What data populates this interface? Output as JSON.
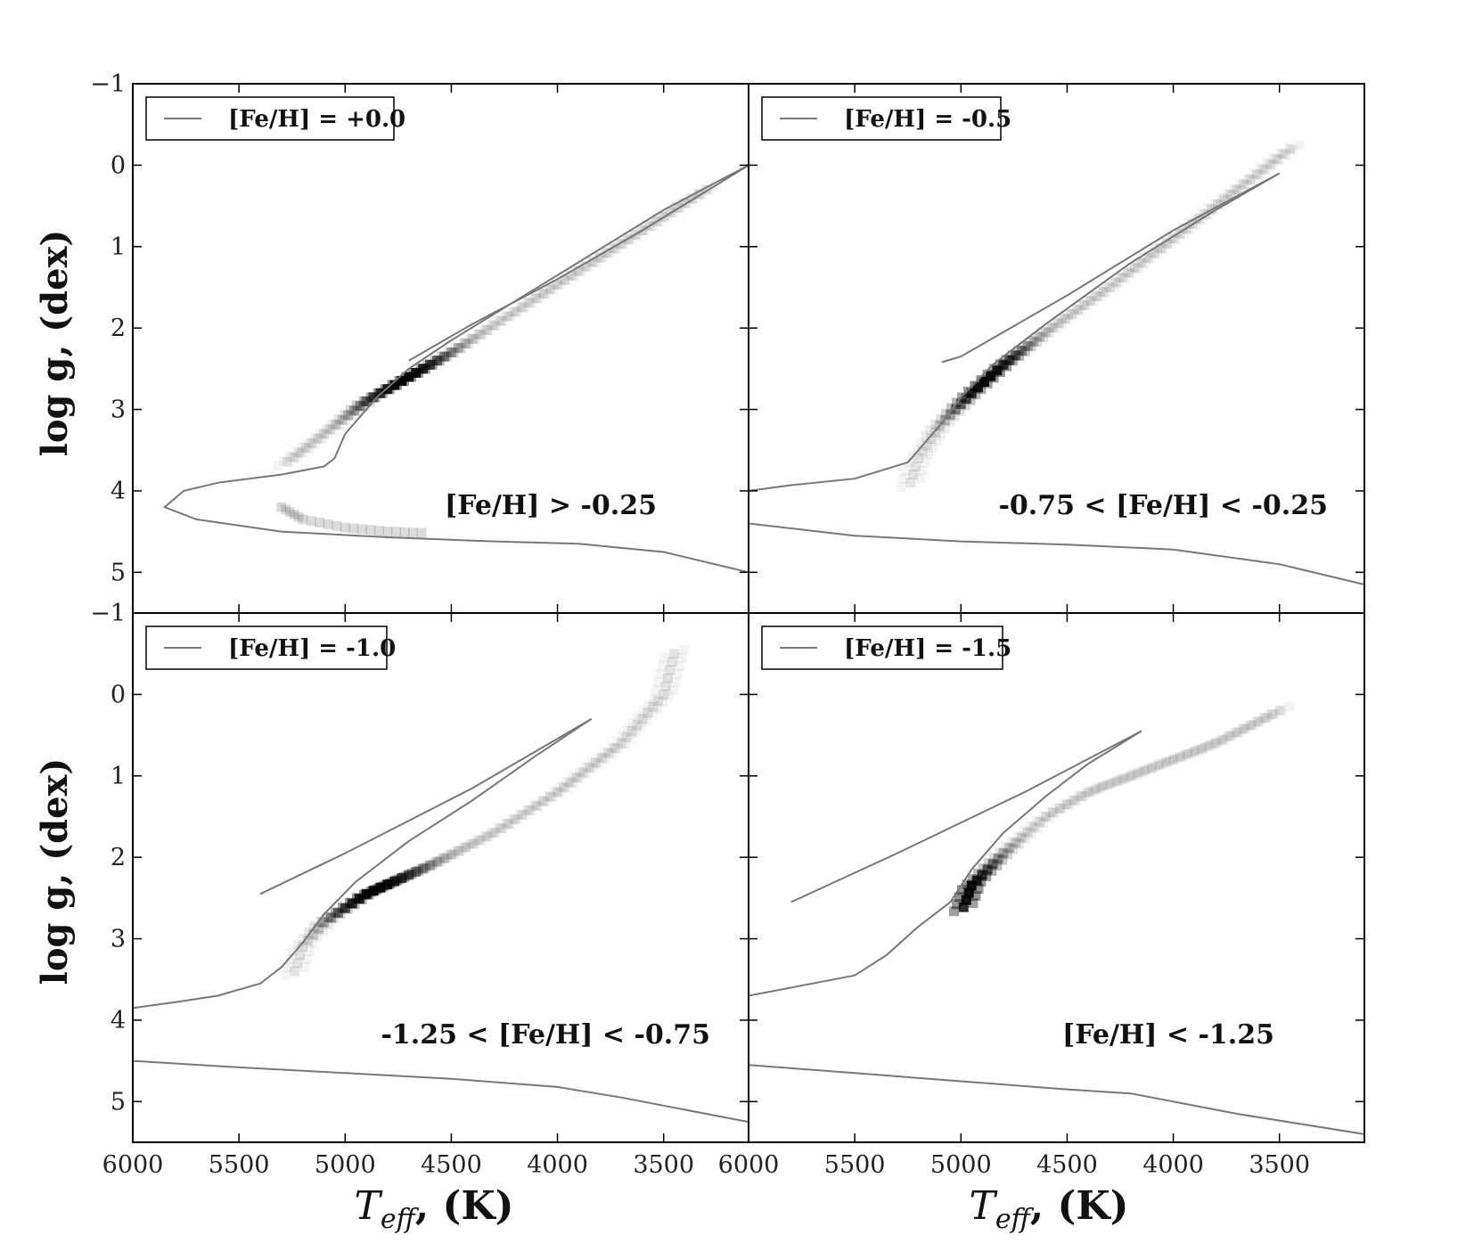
{
  "chart_data": {
    "type": "heatmap",
    "xlabel": {
      "main": "T",
      "sub": "eff",
      "unit": ", (K)"
    },
    "ylabel": "log g, (dex)",
    "xlim": [
      6000,
      3100
    ],
    "ylim": [
      5.5,
      -1
    ],
    "xticks": [
      6000,
      5500,
      5000,
      4500,
      4000,
      3500
    ],
    "xticklabels": [
      "6000",
      "5500",
      "5000",
      "4500",
      "4000",
      "3500"
    ],
    "yticks": [
      -1,
      0,
      1,
      2,
      3,
      4,
      5
    ],
    "yticklabels": [
      "−1",
      "0",
      "1",
      "2",
      "3",
      "4",
      "5"
    ],
    "line_color": "#777777",
    "panels": [
      {
        "legend": "[Fe/H] = +0.0",
        "annotation": "[Fe/H] > -0.25",
        "isochrone_rgb": [
          [
            3100,
            0.0
          ],
          [
            3500,
            0.55
          ],
          [
            4000,
            1.35
          ],
          [
            4500,
            2.15
          ],
          [
            4700,
            2.5
          ],
          [
            4850,
            2.85
          ],
          [
            5000,
            3.3
          ],
          [
            5050,
            3.6
          ],
          [
            5100,
            3.7
          ],
          [
            5300,
            3.8
          ],
          [
            5600,
            3.9
          ],
          [
            5760,
            4.0
          ],
          [
            5850,
            4.2
          ],
          [
            5700,
            4.35
          ],
          [
            5300,
            4.5
          ],
          [
            4800,
            4.57
          ],
          [
            4300,
            4.62
          ],
          [
            3900,
            4.65
          ],
          [
            3500,
            4.75
          ],
          [
            3100,
            5.0
          ]
        ],
        "isochrone_hb": [
          [
            3100,
            0.0
          ],
          [
            3600,
            0.8
          ],
          [
            4000,
            1.4
          ],
          [
            4400,
            1.95
          ],
          [
            4700,
            2.4
          ]
        ],
        "density_ridge": [
          [
            3300,
            0.3
          ],
          [
            3600,
            0.8
          ],
          [
            3900,
            1.3
          ],
          [
            4200,
            1.8
          ],
          [
            4500,
            2.3
          ],
          [
            4700,
            2.6
          ],
          [
            4900,
            2.9
          ],
          [
            5100,
            3.3
          ],
          [
            5300,
            3.7
          ]
        ],
        "density_peak": [
          4750,
          2.6
        ],
        "density_branch": [
          [
            5300,
            4.2
          ],
          [
            5200,
            4.35
          ],
          [
            5000,
            4.45
          ],
          [
            4800,
            4.5
          ],
          [
            4600,
            4.52
          ]
        ]
      },
      {
        "legend": "[Fe/H] = -0.5",
        "annotation": "-0.75 < [Fe/H] < -0.25",
        "isochrone_rgb": [
          [
            3500,
            0.1
          ],
          [
            3800,
            0.55
          ],
          [
            4200,
            1.2
          ],
          [
            4600,
            1.95
          ],
          [
            4850,
            2.45
          ],
          [
            5000,
            2.85
          ],
          [
            5100,
            3.2
          ],
          [
            5200,
            3.5
          ],
          [
            5250,
            3.65
          ],
          [
            5500,
            3.85
          ],
          [
            5800,
            3.93
          ],
          [
            6000,
            4.0
          ]
        ],
        "isochrone_hb": [
          [
            3500,
            0.1
          ],
          [
            4000,
            0.8
          ],
          [
            4500,
            1.6
          ],
          [
            5000,
            2.35
          ],
          [
            5090,
            2.42
          ]
        ],
        "isochrone_ms": [
          [
            6000,
            4.4
          ],
          [
            5500,
            4.55
          ],
          [
            5000,
            4.62
          ],
          [
            4500,
            4.66
          ],
          [
            4000,
            4.72
          ],
          [
            3500,
            4.9
          ],
          [
            3100,
            5.15
          ]
        ],
        "density_ridge": [
          [
            3450,
            -0.2
          ],
          [
            3700,
            0.3
          ],
          [
            4000,
            0.9
          ],
          [
            4300,
            1.5
          ],
          [
            4600,
            2.05
          ],
          [
            4800,
            2.45
          ],
          [
            4950,
            2.8
          ],
          [
            5100,
            3.2
          ],
          [
            5200,
            3.6
          ],
          [
            5250,
            4.0
          ]
        ],
        "density_peak": [
          4900,
          2.6
        ]
      },
      {
        "legend": "[Fe/H] = -1.0",
        "annotation": "-1.25 < [Fe/H] < -0.75",
        "isochrone_rgb": [
          [
            3840,
            0.3
          ],
          [
            4100,
            0.75
          ],
          [
            4400,
            1.3
          ],
          [
            4700,
            1.8
          ],
          [
            4950,
            2.3
          ],
          [
            5100,
            2.7
          ],
          [
            5200,
            3.05
          ],
          [
            5300,
            3.35
          ],
          [
            5400,
            3.55
          ],
          [
            5600,
            3.7
          ],
          [
            5800,
            3.78
          ],
          [
            6000,
            3.85
          ]
        ],
        "isochrone_hb": [
          [
            3840,
            0.3
          ],
          [
            4400,
            1.15
          ],
          [
            5000,
            1.95
          ],
          [
            5400,
            2.45
          ]
        ],
        "isochrone_ms": [
          [
            6000,
            4.5
          ],
          [
            5500,
            4.58
          ],
          [
            5000,
            4.65
          ],
          [
            4500,
            4.72
          ],
          [
            4000,
            4.82
          ],
          [
            3700,
            4.95
          ],
          [
            3100,
            5.25
          ]
        ],
        "density_ridge": [
          [
            3450,
            -0.5
          ],
          [
            3500,
            0.0
          ],
          [
            3700,
            0.6
          ],
          [
            4000,
            1.2
          ],
          [
            4300,
            1.7
          ],
          [
            4600,
            2.1
          ],
          [
            4900,
            2.45
          ],
          [
            5100,
            2.8
          ],
          [
            5200,
            3.1
          ],
          [
            5250,
            3.5
          ]
        ],
        "density_peak": [
          4850,
          2.45
        ]
      },
      {
        "legend": "[Fe/H] = -1.5",
        "annotation": "[Fe/H] < -1.25",
        "isochrone_rgb": [
          [
            4150,
            0.45
          ],
          [
            4400,
            0.85
          ],
          [
            4600,
            1.25
          ],
          [
            4800,
            1.7
          ],
          [
            4950,
            2.15
          ],
          [
            5050,
            2.55
          ],
          [
            5200,
            2.85
          ],
          [
            5350,
            3.2
          ],
          [
            5500,
            3.45
          ],
          [
            5800,
            3.6
          ],
          [
            6000,
            3.7
          ]
        ],
        "isochrone_hb": [
          [
            4150,
            0.45
          ],
          [
            4700,
            1.2
          ],
          [
            5300,
            1.95
          ],
          [
            5800,
            2.55
          ]
        ],
        "isochrone_ms": [
          [
            6000,
            4.55
          ],
          [
            5500,
            4.65
          ],
          [
            5000,
            4.75
          ],
          [
            4500,
            4.85
          ],
          [
            4200,
            4.9
          ],
          [
            3700,
            5.15
          ],
          [
            3100,
            5.4
          ]
        ],
        "density_ridge": [
          [
            3500,
            0.2
          ],
          [
            3800,
            0.6
          ],
          [
            4100,
            0.9
          ],
          [
            4400,
            1.2
          ],
          [
            4600,
            1.5
          ],
          [
            4800,
            1.95
          ],
          [
            4950,
            2.35
          ],
          [
            5000,
            2.7
          ]
        ],
        "density_peak": [
          4950,
          2.45
        ]
      }
    ]
  }
}
